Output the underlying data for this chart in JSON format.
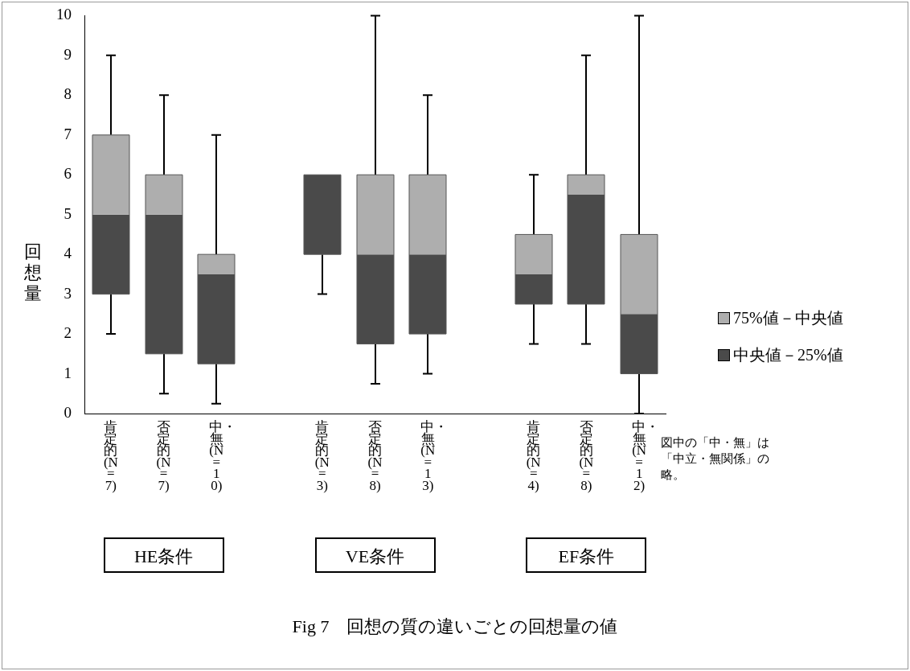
{
  "chart_data": {
    "type": "box",
    "title": "Fig 7　回想の質の違いごとの回想量の値",
    "ylabel": "回想量",
    "categories": [
      "肯定的(N=7)",
      "否定的(N=7)",
      "中・無(N=10)",
      null,
      "肯定的(N=3)",
      "否定的(N=8)",
      "中・無(N=13)",
      null,
      "肯定的(N=4)",
      "否定的(N=8)",
      "中・無(N=12)"
    ],
    "series": [
      {
        "color": "#4a4a4a",
        "boxes": [
          {
            "low": 2,
            "q1": 3,
            "median": 5,
            "q3": 7,
            "high": 9
          },
          {
            "low": 0.5,
            "q1": 1.5,
            "median": 5,
            "q3": 6,
            "high": 8
          },
          {
            "low": 0.25,
            "q1": 1.25,
            "median": 3.5,
            "q3": 4,
            "high": 7
          },
          null,
          {
            "low": 3,
            "q1": 4,
            "median": 6,
            "q3": 6,
            "high": 6
          },
          {
            "low": 0.75,
            "q1": 1.75,
            "median": 4,
            "q3": 6,
            "high": 10
          },
          {
            "low": 1,
            "q1": 2,
            "median": 4,
            "q3": 6,
            "high": 8
          },
          null,
          {
            "low": 1.75,
            "q1": 2.75,
            "median": 3.5,
            "q3": 4.5,
            "high": 6
          },
          {
            "low": 1.75,
            "q1": 2.75,
            "median": 5.5,
            "q3": 6,
            "high": 9
          },
          {
            "low": 0,
            "q1": 1,
            "median": 2.5,
            "q3": 4.5,
            "high": 10
          }
        ]
      }
    ],
    "ylim": [
      0,
      10
    ],
    "yticks": [
      0,
      1,
      2,
      3,
      4,
      5,
      6,
      7,
      8,
      9,
      10
    ],
    "annotations": [
      "HE条件",
      "VE条件",
      "EF条件",
      "75%値－中央値",
      "中央値－25%値",
      "図中の「中・無」は「中立・無関係」の略。"
    ]
  }
}
